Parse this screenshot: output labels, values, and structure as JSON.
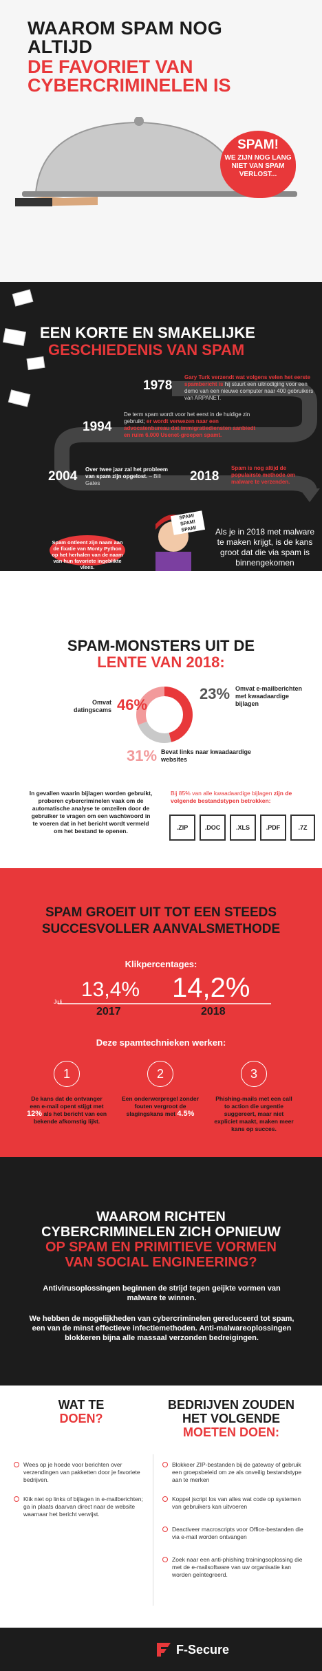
{
  "hero": {
    "title_line1": "WAAROM SPAM NOG ALTIJD",
    "title_line2": "DE FAVORIET VAN CYBERCRIMINELEN IS",
    "bubble_title": "SPAM!",
    "bubble_text": "WE ZIJN NOG LANG NIET VAN SPAM VERLOST..."
  },
  "history": {
    "title_line1": "EEN KORTE EN SMAKELIJKE",
    "title_line2": "GESCHIEDENIS VAN SPAM",
    "events": [
      {
        "year": "1978",
        "text_bold": "Gary Turk verzendt wat volgens velen het eerste spambericht is",
        "text": " hij stuurt een uitnodiging voor een demo van een nieuwe computer naar 400 gebruikers van ARPANET."
      },
      {
        "year": "1994",
        "text": "De term spam wordt voor het eerst in de huidige zin gebruikt; ",
        "text_bold": "er wordt verwezen naar een advocatenbureau dat immigratiediensten aanbiedt en ruim 6.000 Usenet-groepen spamt."
      },
      {
        "year": "2004",
        "text_bold": "Over twee jaar zal het probleem van spam zijn opgelost.",
        "text": " – Bill Gates"
      },
      {
        "year": "2018",
        "text_red": "Spam is nog altijd de populairste methode om malware te verzenden."
      }
    ],
    "monty_text": "Spam ontleent zijn naam aan de fixatie van Monty Python op het herhalen van de naam van hun favoriete ingeblikte vlees.",
    "spam_sign": "SPAM! SPAM! SPAM!",
    "malware_text": "Als je in 2018 met malware te maken krijgt, is de kans groot dat die via spam is binnengekomen"
  },
  "monsters": {
    "title_line1": "SPAM-MONSTERS UIT DE",
    "title_line2": "LENTE VAN 2018:",
    "stats": [
      {
        "label": "Omvat datingscams",
        "pct": "46%"
      },
      {
        "label": "Omvat e-mailberichten met kwaadaardige bijlagen",
        "pct": "23%"
      },
      {
        "label": "Bevat links naar kwaadaardige websites",
        "pct": "31%"
      }
    ],
    "paragraph": "In gevallen waarin bijlagen worden gebruikt, proberen cybercriminelen vaak om de automatische analyse te omzeilen door de gebruiker te vragen om een wachtwoord in te voeren dat in het bericht wordt vermeld om het bestand te openen.",
    "attach_intro": "Bij 85% van alle kwaadaardige bijlagen",
    "attach_bold": "zijn de volgende bestandstypen betrokken:",
    "files": [
      ".ZIP",
      ".DOC",
      ".XLS",
      ".PDF",
      ".7Z"
    ]
  },
  "growth": {
    "title_line1": "SPAM GROEIT UIT TOT EEN STEEDS",
    "title_line2": "SUCCESVOLLER AANVALSMETHODE",
    "click_label": "Klikpercentages:",
    "rate_2017": "13,4%",
    "rate_2018": "14,2%",
    "year_2017": "2017",
    "year_2018": "2018",
    "juli": "Juli",
    "tech_label": "Deze spamtechnieken werken:",
    "techniques": [
      {
        "num": "1",
        "text_a": "De kans dat de ontvanger een e-mail opent stijgt met ",
        "highlight": "12%",
        "text_b": " als het bericht van een bekende afkomstig lijkt."
      },
      {
        "num": "2",
        "text_a": "Een onderwerpregel zonder fouten vergroot de slagingskans met ",
        "highlight": "4.5%",
        "text_b": ""
      },
      {
        "num": "3",
        "text_a": "Phishing-mails met een call to action die urgentie suggereert, maar niet expliciet maakt, maken meer kans op succes.",
        "highlight": "",
        "text_b": ""
      }
    ]
  },
  "why": {
    "line1": "WAAROM RICHTEN",
    "line2": "CYBERCRIMINELEN ZICH OPNIEUW",
    "line3": "OP SPAM EN PRIMITIEVE VORMEN",
    "line4": "VAN SOCIAL ENGINEERING?",
    "p1": "Antivirusoplossingen beginnen de strijd tegen geijkte vormen van malware te winnen.",
    "p2": "We hebben de mogelijkheden van cybercriminelen gereduceerd tot spam, een van de minst effectieve infectiemethoden. Anti-malwareoplossingen blokkeren bijna alle massaal verzonden bedreigingen."
  },
  "actions": {
    "left_title1": "WAT TE",
    "left_title2": "DOEN?",
    "right_title1": "BEDRIJVEN ZOUDEN HET VOLGENDE",
    "right_title2": "MOETEN DOEN:",
    "left_items": [
      "Wees op je hoede voor berichten over verzendingen van pakketten door je favoriete bedrijven.",
      "Klik niet op links of bijlagen in e-mailberichten; ga in plaats daarvan direct naar de website waarnaar het bericht verwijst."
    ],
    "right_items": [
      "Blokkeer ZIP-bestanden bij de gateway of gebruik een groepsbeleid om ze als onveilig bestandstype aan te merken",
      "Koppel jscript los van alles wat code op systemen van gebruikers kan uitvoeren",
      "Deactiveer macroscripts voor Office-bestanden die via e-mail worden ontvangen",
      "Zoek naar een anti-phishing trainingsoplossing die met de e-mailsoftware van uw organisatie kan worden geïntegreerd."
    ]
  },
  "footer": {
    "brand": "F-Secure"
  },
  "colors": {
    "accent": "#e8383a",
    "dark": "#1c1c1c"
  }
}
